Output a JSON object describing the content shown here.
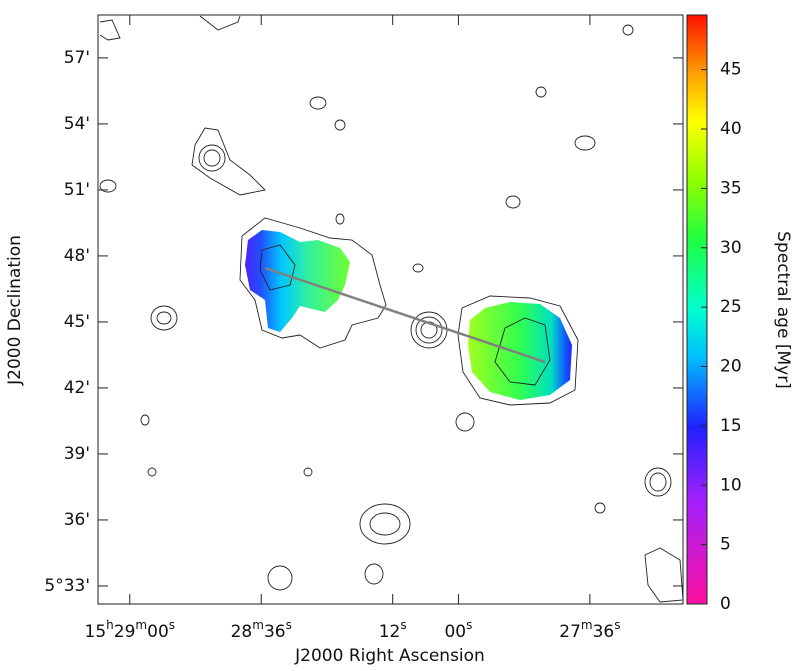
{
  "chart_data": {
    "type": "image",
    "xlabel": "J2000 Right Ascension",
    "ylabel": "J2000 Declination",
    "colorbar_label": "Spectral age [Myr]",
    "xlim": [
      1745.8,
      1639.0
    ],
    "xticks": [
      {
        "value": 1740,
        "label": "15h29m00s"
      },
      {
        "value": 1716,
        "label": "28m36s"
      },
      {
        "value": 1692,
        "label": "12s"
      },
      {
        "value": 1680,
        "label": "00s"
      },
      {
        "value": 1656,
        "label": "27m36s"
      }
    ],
    "ylim": [
      32.18,
      58.95
    ],
    "yticks": [
      {
        "value": 33,
        "label": "5°33'"
      },
      {
        "value": 36,
        "label": "36'"
      },
      {
        "value": 39,
        "label": "39'"
      },
      {
        "value": 42,
        "label": "42'"
      },
      {
        "value": 45,
        "label": "45'"
      },
      {
        "value": 48,
        "label": "48'"
      },
      {
        "value": 51,
        "label": "51'"
      },
      {
        "value": 54,
        "label": "54'"
      },
      {
        "value": 57,
        "label": "57'"
      }
    ],
    "clim": [
      0,
      49.6
    ],
    "cticks": [
      0,
      5,
      10,
      15,
      20,
      25,
      30,
      35,
      40,
      45
    ]
  }
}
